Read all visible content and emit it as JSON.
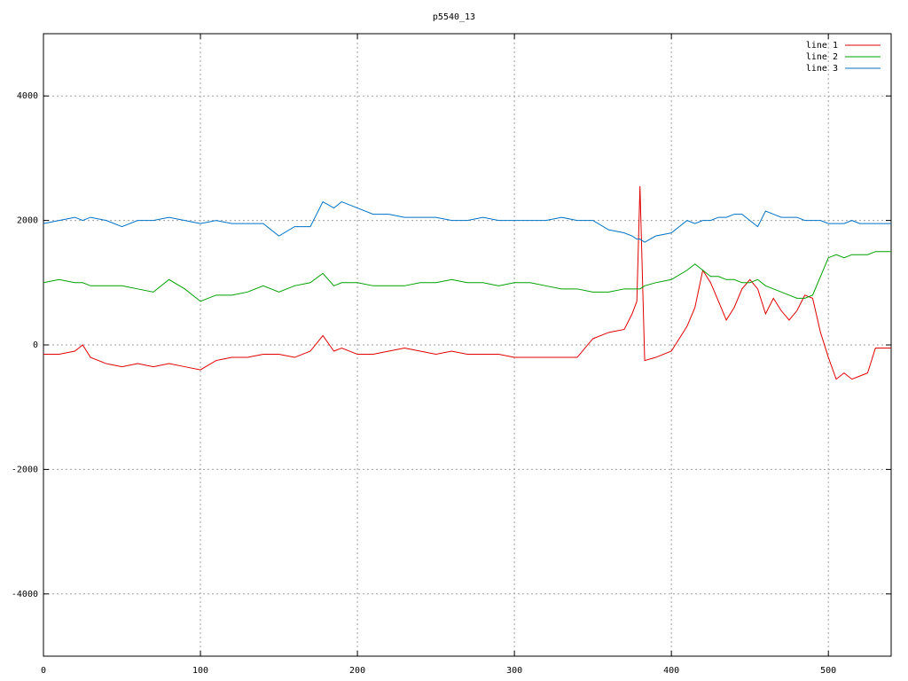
{
  "chart_data": {
    "type": "line",
    "title": "p5540_13",
    "x": [
      0,
      10,
      20,
      25,
      30,
      40,
      50,
      60,
      70,
      80,
      90,
      100,
      110,
      120,
      130,
      140,
      150,
      160,
      170,
      178,
      185,
      190,
      200,
      210,
      220,
      230,
      240,
      250,
      260,
      270,
      280,
      290,
      300,
      310,
      320,
      330,
      340,
      350,
      360,
      370,
      375,
      378,
      380,
      383,
      390,
      400,
      410,
      415,
      420,
      425,
      430,
      435,
      440,
      445,
      450,
      455,
      460,
      465,
      470,
      475,
      480,
      485,
      490,
      495,
      500,
      505,
      510,
      515,
      520,
      525,
      530,
      535,
      540
    ],
    "series": [
      {
        "name": "line 1",
        "color": "#e00000",
        "values": [
          -150,
          -150,
          -100,
          0,
          -200,
          -300,
          -350,
          -300,
          -350,
          -300,
          -350,
          -400,
          -250,
          -200,
          -200,
          -150,
          -150,
          -200,
          -100,
          150,
          -100,
          -50,
          -150,
          -150,
          -100,
          -50,
          -100,
          -150,
          -100,
          -150,
          -150,
          -150,
          -200,
          -200,
          -200,
          -200,
          -200,
          100,
          200,
          250,
          500,
          700,
          2550,
          -250,
          -200,
          -100,
          300,
          600,
          1200,
          1000,
          700,
          400,
          600,
          900,
          1050,
          900,
          500,
          750,
          550,
          400,
          550,
          800,
          750,
          200,
          -200,
          -550,
          -450,
          -550,
          -500,
          -450,
          -50,
          -50,
          -50
        ]
      },
      {
        "name": "line 2",
        "color": "#00a000",
        "values": [
          1000,
          1050,
          1000,
          1000,
          950,
          950,
          950,
          900,
          850,
          1050,
          900,
          700,
          800,
          800,
          850,
          950,
          850,
          950,
          1000,
          1150,
          950,
          1000,
          1000,
          950,
          950,
          950,
          1000,
          1000,
          1050,
          1000,
          1000,
          950,
          1000,
          1000,
          950,
          900,
          900,
          850,
          850,
          900,
          900,
          900,
          900,
          950,
          1000,
          1050,
          1200,
          1300,
          1200,
          1100,
          1100,
          1050,
          1050,
          1000,
          1000,
          1050,
          950,
          900,
          850,
          800,
          750,
          750,
          800,
          1100,
          1400,
          1450,
          1400,
          1450,
          1450,
          1450,
          1500,
          1500,
          1500
        ]
      },
      {
        "name": "line 3",
        "color": "#0072c6",
        "values": [
          1950,
          2000,
          2050,
          2000,
          2050,
          2000,
          1900,
          2000,
          2000,
          2050,
          2000,
          1950,
          2000,
          1950,
          1950,
          1950,
          1750,
          1900,
          1900,
          2300,
          2200,
          2300,
          2200,
          2100,
          2100,
          2050,
          2050,
          2050,
          2000,
          2000,
          2050,
          2000,
          2000,
          2000,
          2000,
          2050,
          2000,
          2000,
          1850,
          1800,
          1750,
          1700,
          1700,
          1650,
          1750,
          1800,
          2000,
          1950,
          2000,
          2000,
          2050,
          2050,
          2100,
          2100,
          2000,
          1900,
          2150,
          2100,
          2050,
          2050,
          2050,
          2000,
          2000,
          2000,
          1950,
          1950,
          1950,
          2000,
          1950,
          1950,
          1950,
          1950,
          1950
        ]
      }
    ],
    "xlim": [
      0,
      540
    ],
    "ylim": [
      -5000,
      5000
    ],
    "xticks": [
      0,
      100,
      200,
      300,
      400,
      500
    ],
    "yticks": [
      -4000,
      -2000,
      0,
      2000,
      4000
    ],
    "grid": true,
    "legend": "top-right"
  }
}
